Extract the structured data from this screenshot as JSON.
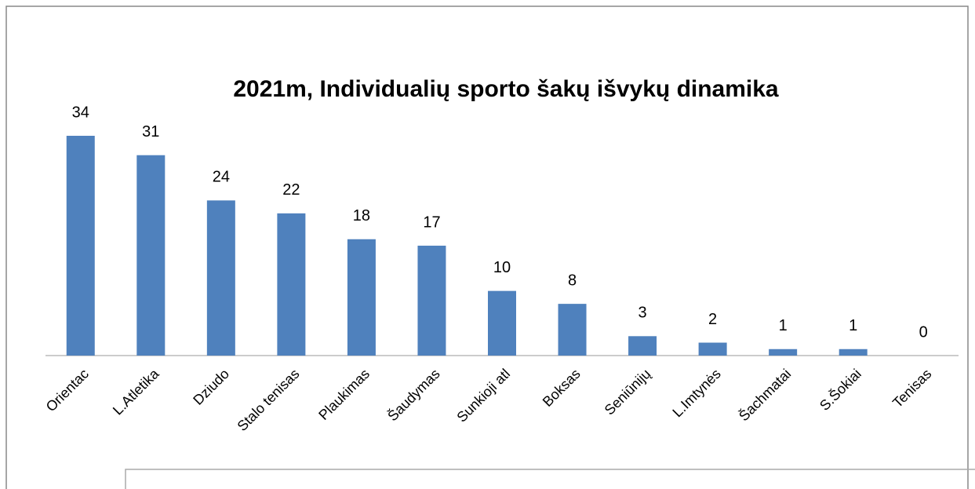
{
  "chart_data": {
    "type": "bar",
    "title": "2021m, Individualių sporto šakų išvykų dinamika",
    "categories": [
      "Orientac",
      "L.Atletika",
      "Dziudo",
      "Stalo tenisas",
      "Plaukimas",
      "Šaudymas",
      "Sunkioji atl",
      "Boksas",
      "Seniūnijų",
      "L.Imtynės",
      "Šachmatai",
      "S.Šokiai",
      "Tenisas"
    ],
    "values": [
      34,
      31,
      24,
      22,
      18,
      17,
      10,
      8,
      3,
      2,
      1,
      1,
      0
    ],
    "color": "#4f81bd"
  }
}
